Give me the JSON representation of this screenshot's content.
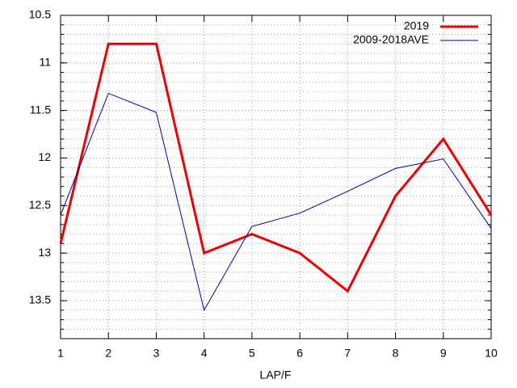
{
  "chart_data": {
    "type": "line",
    "xlabel": "LAP/F",
    "x": [
      1,
      2,
      3,
      4,
      5,
      6,
      7,
      8,
      9,
      10
    ],
    "series": [
      {
        "name": "2019",
        "color": "#ee0000",
        "width": 3,
        "values": [
          12.9,
          10.8,
          10.8,
          13.0,
          12.8,
          13.0,
          13.4,
          12.4,
          11.8,
          12.6
        ]
      },
      {
        "name": "2009-2018AVE",
        "color": "#000099",
        "width": 1,
        "values": [
          12.6,
          11.32,
          11.52,
          13.6,
          12.72,
          12.58,
          12.35,
          12.11,
          12.01,
          12.74
        ]
      }
    ],
    "xlim": [
      1,
      10
    ],
    "xticks": [
      1,
      2,
      3,
      4,
      5,
      6,
      7,
      8,
      9,
      10
    ],
    "ylim": [
      10.5,
      13.9
    ],
    "yticks": [
      10.5,
      11,
      11.5,
      12,
      12.5,
      13,
      13.5
    ],
    "y_reversed": true,
    "y_minor_step": 0.1,
    "grid": true,
    "legend": "top-right"
  }
}
